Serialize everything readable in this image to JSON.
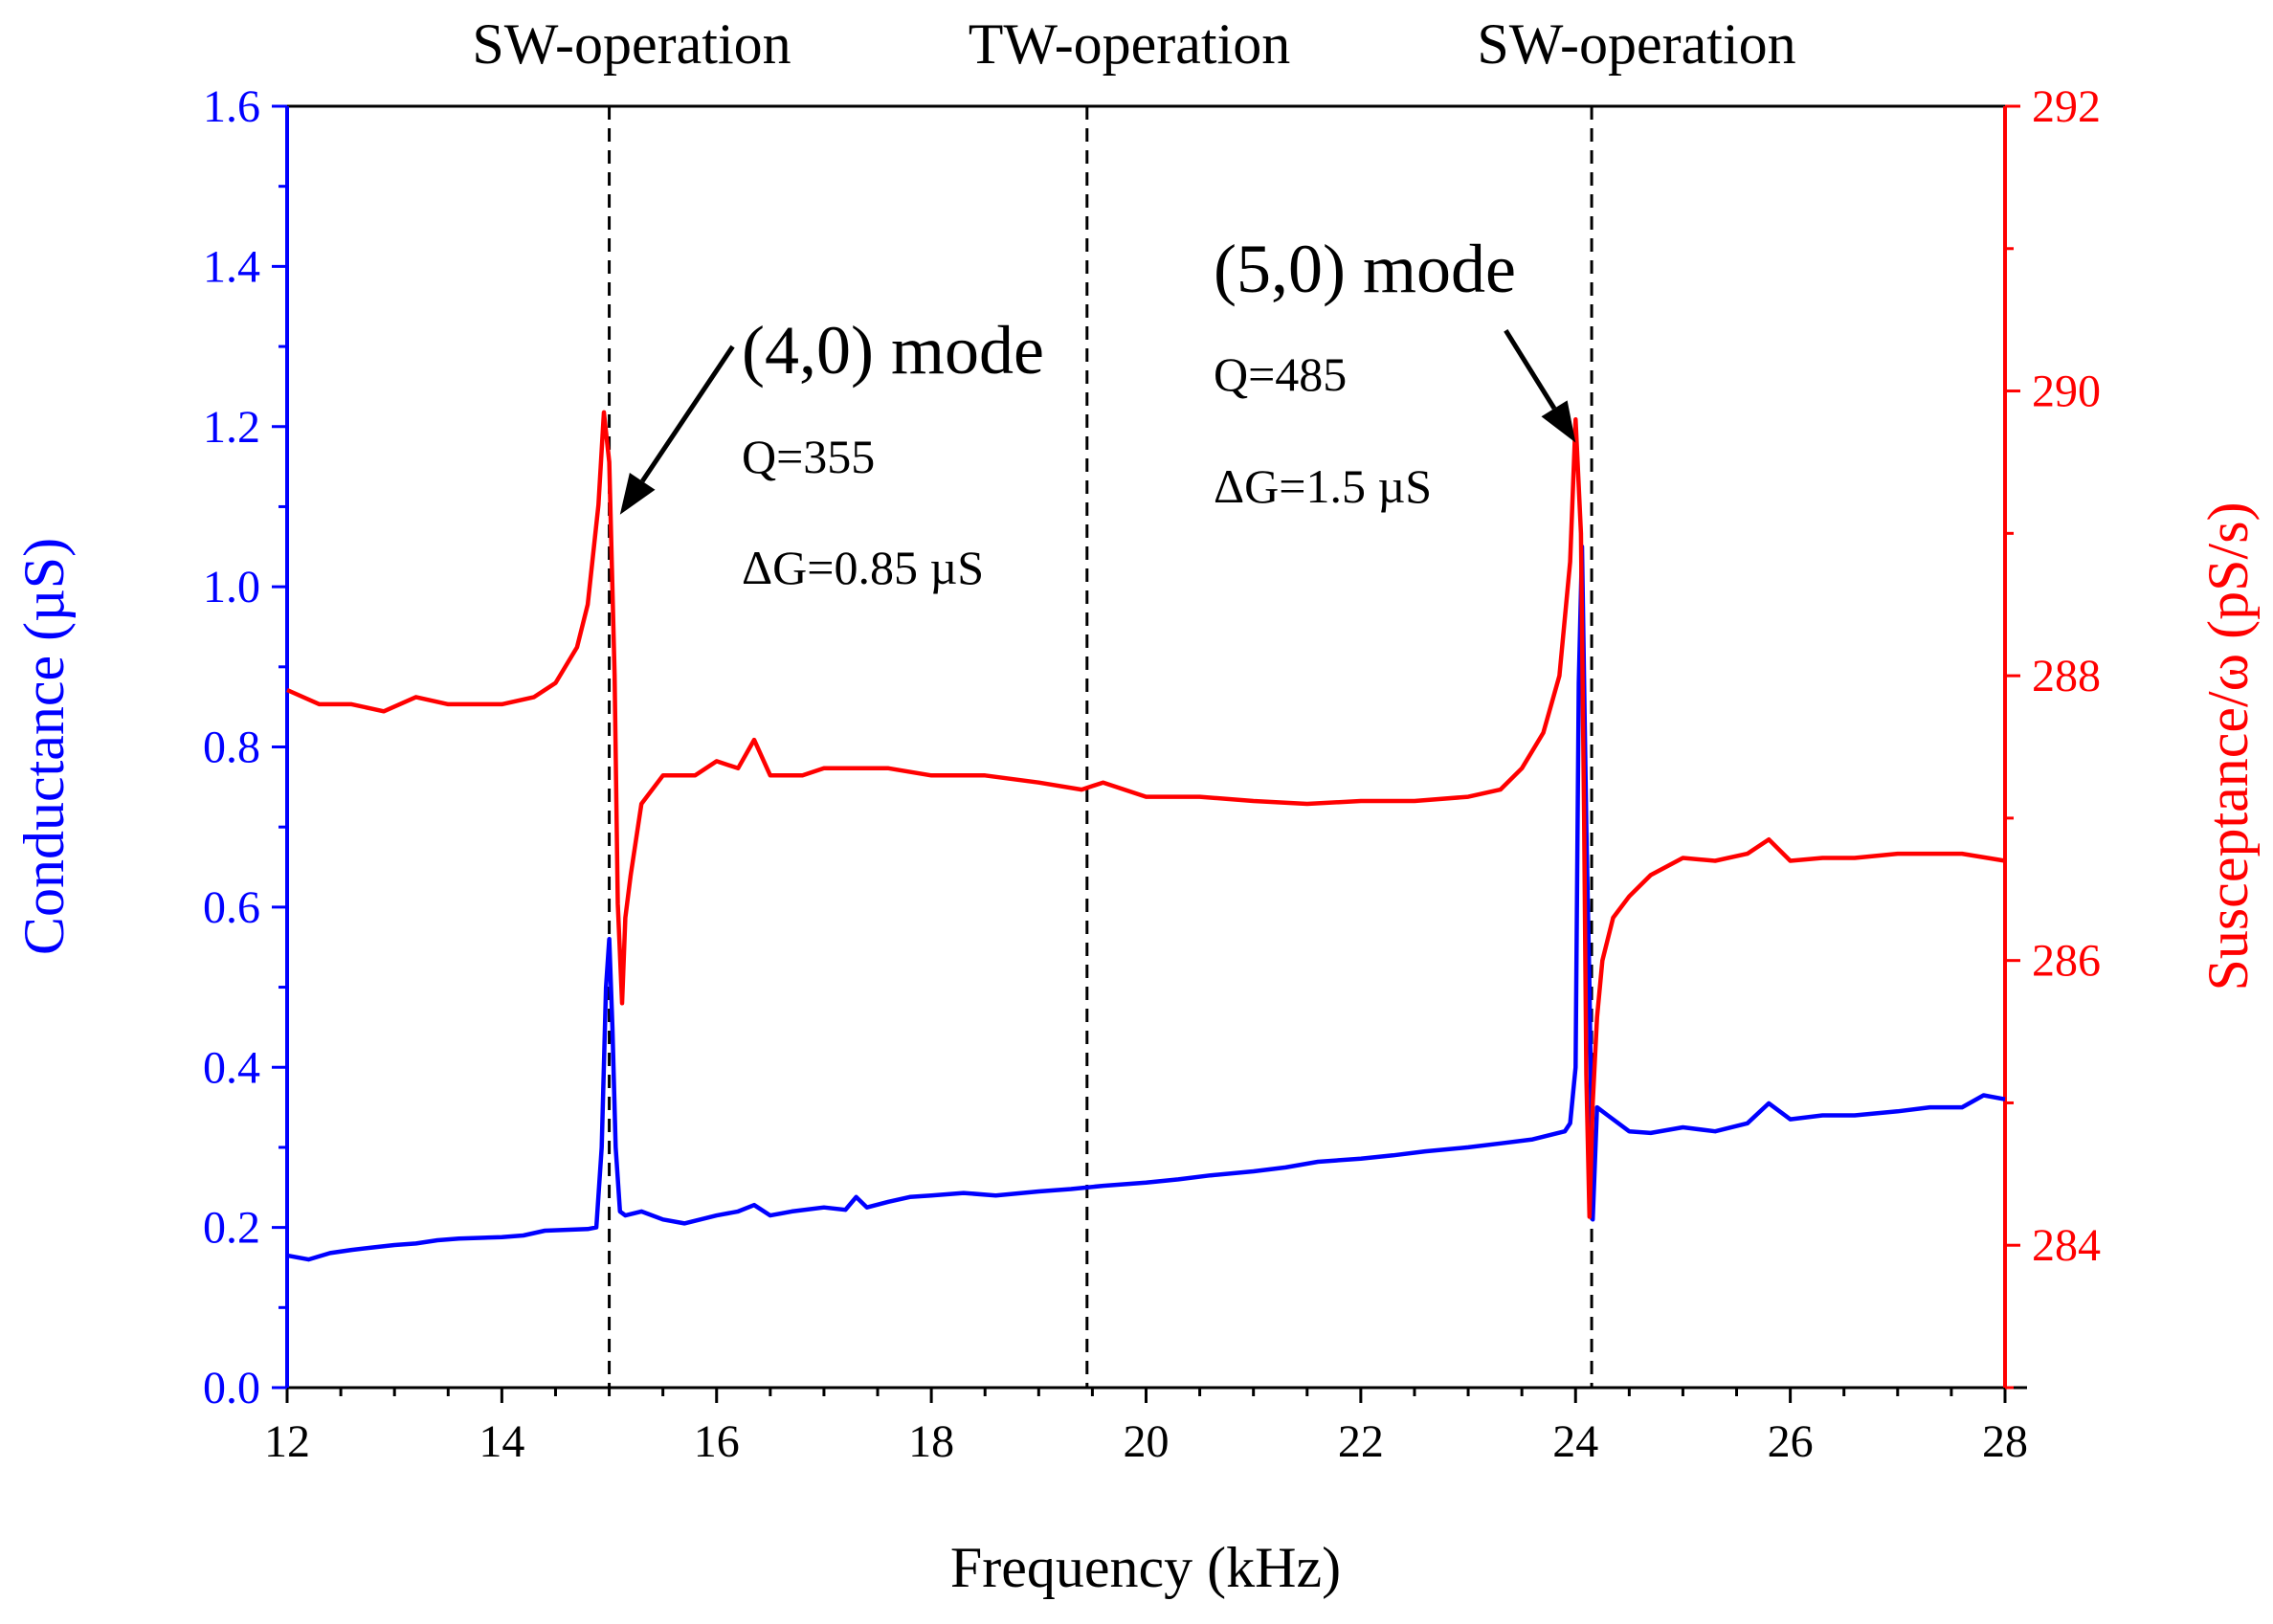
{
  "chart_data": {
    "type": "line",
    "xlabel": "Frequency (kHz)",
    "ylabel_left": "Conductance (µS)",
    "ylabel_right": "Susceptance/ω (pS/s)",
    "xlim": [
      12,
      28
    ],
    "ylim_left": [
      0.0,
      1.6
    ],
    "ylim_right": [
      283,
      292
    ],
    "x_ticks": [
      "12",
      "14",
      "16",
      "18",
      "20",
      "22",
      "24",
      "26",
      "28"
    ],
    "y_left_ticks": [
      "0.0",
      "0.2",
      "0.4",
      "0.6",
      "0.8",
      "1.0",
      "1.2",
      "1.4",
      "1.6"
    ],
    "y_right_ticks": [
      "284",
      "286",
      "288",
      "290",
      "292"
    ],
    "colors": {
      "left": "#0000ff",
      "right": "#ff0000",
      "axis": "#000000"
    },
    "region_labels": [
      "SW-operation",
      "TW-operation",
      "SW-operation"
    ],
    "dashed_lines_x": [
      15.0,
      19.45,
      24.15
    ],
    "annotations": [
      {
        "id": "mode40",
        "title": "(4,0) mode",
        "q": "Q=355",
        "dg": "ΔG=0.85 µS",
        "arrow_from": [
          16.15,
          1.3
        ],
        "arrow_to": [
          15.1,
          1.09
        ]
      },
      {
        "id": "mode50",
        "title": "(5,0) mode",
        "q": "Q=485",
        "dg": "ΔG=1.5 µS",
        "arrow_from": [
          23.35,
          1.32
        ],
        "arrow_to": [
          24.0,
          1.18
        ]
      }
    ],
    "series": [
      {
        "name": "Conductance",
        "axis": "left",
        "color": "#0000ff",
        "x": [
          12.0,
          12.2,
          12.4,
          12.6,
          12.8,
          13.0,
          13.2,
          13.4,
          13.6,
          13.8,
          14.0,
          14.2,
          14.4,
          14.6,
          14.8,
          14.88,
          14.93,
          14.97,
          15.0,
          15.03,
          15.06,
          15.1,
          15.15,
          15.3,
          15.5,
          15.7,
          16.0,
          16.2,
          16.35,
          16.5,
          16.7,
          17.0,
          17.2,
          17.3,
          17.4,
          17.6,
          17.8,
          18.0,
          18.3,
          18.6,
          19.0,
          19.3,
          19.6,
          20.0,
          20.3,
          20.6,
          21.0,
          21.3,
          21.6,
          22.0,
          22.3,
          22.6,
          23.0,
          23.3,
          23.6,
          23.9,
          23.95,
          24.0,
          24.03,
          24.06,
          24.1,
          24.13,
          24.16,
          24.2,
          24.3,
          24.5,
          24.7,
          25.0,
          25.3,
          25.6,
          25.8,
          26.0,
          26.3,
          26.6,
          27.0,
          27.3,
          27.6,
          27.8,
          28.0
        ],
        "y": [
          0.165,
          0.16,
          0.168,
          0.172,
          0.175,
          0.178,
          0.18,
          0.184,
          0.186,
          0.187,
          0.188,
          0.19,
          0.196,
          0.197,
          0.198,
          0.2,
          0.3,
          0.5,
          0.56,
          0.45,
          0.3,
          0.22,
          0.215,
          0.22,
          0.21,
          0.205,
          0.215,
          0.22,
          0.228,
          0.215,
          0.22,
          0.225,
          0.222,
          0.238,
          0.225,
          0.232,
          0.238,
          0.24,
          0.243,
          0.24,
          0.245,
          0.248,
          0.252,
          0.256,
          0.26,
          0.265,
          0.27,
          0.275,
          0.282,
          0.286,
          0.29,
          0.295,
          0.3,
          0.305,
          0.31,
          0.32,
          0.33,
          0.4,
          0.88,
          1.05,
          0.7,
          0.5,
          0.21,
          0.35,
          0.34,
          0.32,
          0.318,
          0.325,
          0.32,
          0.33,
          0.355,
          0.335,
          0.34,
          0.34,
          0.345,
          0.35,
          0.35,
          0.365,
          0.36
        ]
      },
      {
        "name": "Susceptance/ω",
        "axis": "right",
        "color": "#ff0000",
        "x": [
          12.0,
          12.3,
          12.6,
          12.9,
          13.2,
          13.5,
          13.8,
          14.0,
          14.3,
          14.5,
          14.7,
          14.8,
          14.9,
          14.95,
          15.0,
          15.05,
          15.08,
          15.12,
          15.15,
          15.2,
          15.3,
          15.5,
          15.8,
          16.0,
          16.2,
          16.35,
          16.5,
          16.8,
          17.0,
          17.4,
          17.6,
          18.0,
          18.5,
          19.0,
          19.4,
          19.6,
          20.0,
          20.5,
          21.0,
          21.5,
          22.0,
          22.5,
          23.0,
          23.3,
          23.5,
          23.7,
          23.85,
          23.95,
          24.0,
          24.05,
          24.08,
          24.1,
          24.13,
          24.16,
          24.2,
          24.25,
          24.35,
          24.5,
          24.7,
          25.0,
          25.3,
          25.6,
          25.8,
          26.0,
          26.3,
          26.6,
          27.0,
          27.3,
          27.6,
          28.0
        ],
        "y": [
          287.9,
          287.8,
          287.8,
          287.75,
          287.85,
          287.8,
          287.8,
          287.8,
          287.85,
          287.95,
          288.2,
          288.5,
          289.2,
          289.85,
          289.5,
          288.0,
          286.4,
          285.7,
          286.3,
          286.6,
          287.1,
          287.3,
          287.3,
          287.4,
          287.35,
          287.55,
          287.3,
          287.3,
          287.35,
          287.35,
          287.35,
          287.3,
          287.3,
          287.25,
          287.2,
          287.25,
          287.15,
          287.15,
          287.12,
          287.1,
          287.12,
          287.12,
          287.15,
          287.2,
          287.35,
          287.6,
          288.0,
          288.8,
          289.8,
          289.0,
          287.0,
          285.2,
          284.2,
          285.0,
          285.6,
          286.0,
          286.3,
          286.45,
          286.6,
          286.72,
          286.7,
          286.75,
          286.85,
          286.7,
          286.72,
          286.72,
          286.75,
          286.75,
          286.75,
          286.7
        ]
      }
    ]
  }
}
